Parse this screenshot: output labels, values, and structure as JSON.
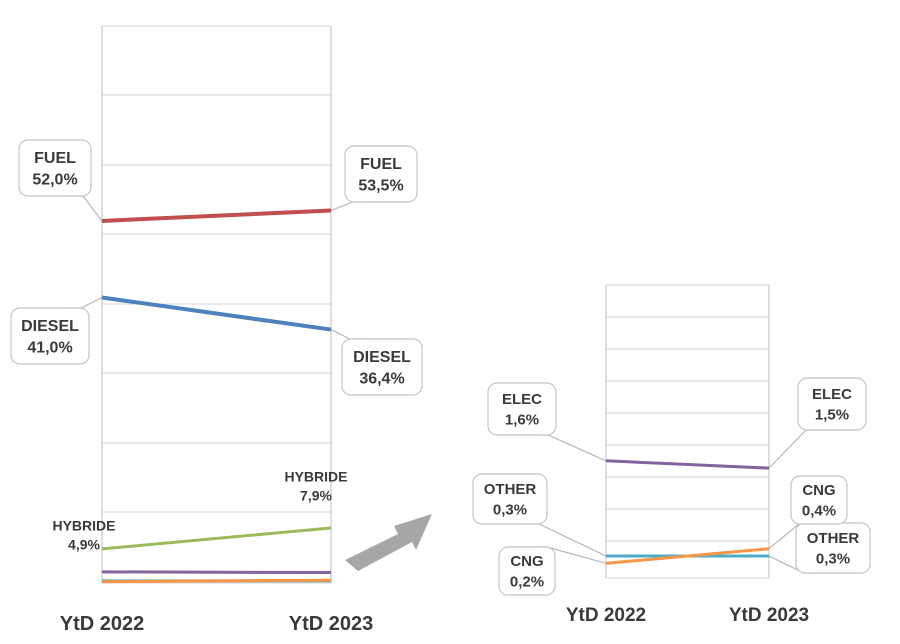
{
  "chart_data": [
    {
      "type": "line",
      "categories": [
        "YtD 2022",
        "YtD 2023"
      ],
      "ylim": [
        0,
        80
      ],
      "grid": true,
      "series": [
        {
          "name": "FUEL",
          "values": [
            52.0,
            53.5
          ],
          "labels": [
            "FUEL\n52,0%",
            "FUEL\n53,5%"
          ],
          "color": "#c0504d"
        },
        {
          "name": "DIESEL",
          "values": [
            41.0,
            36.4
          ],
          "labels": [
            "DIESEL\n41,0%",
            "DIESEL\n36,4%"
          ],
          "color": "#4f81bd"
        },
        {
          "name": "HYBRIDE",
          "values": [
            4.9,
            7.9
          ],
          "labels": [
            "HYBRIDE\n4,9%",
            "HYBRIDE\n7,9%"
          ],
          "color": "#9bbb59"
        },
        {
          "name": "ELEC",
          "values": [
            1.6,
            1.5
          ],
          "color": "#8064a2"
        },
        {
          "name": "OTHER",
          "values": [
            0.3,
            0.3
          ],
          "color": "#4bacc6"
        },
        {
          "name": "CNG",
          "values": [
            0.2,
            0.4
          ],
          "color": "#f79646"
        }
      ]
    },
    {
      "type": "line",
      "categories": [
        "YtD 2022",
        "YtD 2023"
      ],
      "ylim": [
        0,
        4
      ],
      "grid": true,
      "series": [
        {
          "name": "ELEC",
          "values": [
            1.6,
            1.5
          ],
          "labels": [
            "ELEC\n1,6%",
            "ELEC\n1,5%"
          ],
          "color": "#8064a2"
        },
        {
          "name": "OTHER",
          "values": [
            0.3,
            0.3
          ],
          "labels": [
            "OTHER\n0,3%",
            "OTHER\n0,3%"
          ],
          "color": "#4bacc6"
        },
        {
          "name": "CNG",
          "values": [
            0.2,
            0.4
          ],
          "labels": [
            "CNG\n0,2%",
            "CNG\n0,4%"
          ],
          "color": "#f79646"
        }
      ]
    }
  ],
  "zoom_arrow": {
    "color": "#a6a6a6",
    "meaning": "zoom from left chart to right chart"
  }
}
